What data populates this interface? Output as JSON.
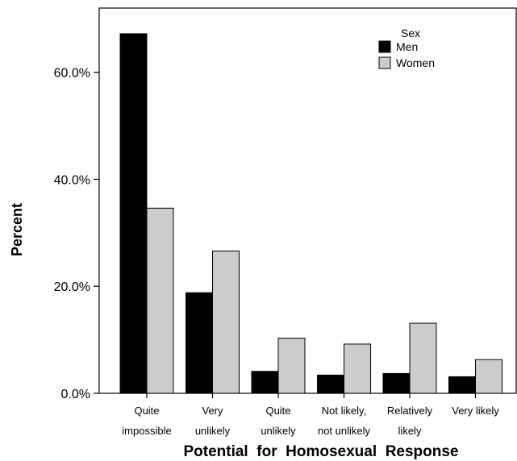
{
  "chart_data": {
    "type": "bar",
    "title": "",
    "xlabel": "Potential  for  Homosexual  Response",
    "ylabel": "Percent",
    "ylim": [
      0,
      72
    ],
    "yticks": [
      0,
      20,
      40,
      60
    ],
    "ytick_labels": [
      "0.0%",
      "20.0%",
      "40.0%",
      "60.0%"
    ],
    "categories": [
      [
        "Quite",
        "impossible"
      ],
      [
        "Very",
        "unlikely"
      ],
      [
        "Quite",
        "unlikely"
      ],
      [
        "Not likely,",
        "not unlikely"
      ],
      [
        "Relatively",
        "likely"
      ],
      [
        "Very likely"
      ]
    ],
    "series": [
      {
        "name": "Men",
        "color": "#000000",
        "values": [
          67.2,
          18.8,
          4.1,
          3.4,
          3.7,
          3.1
        ]
      },
      {
        "name": "Women",
        "color": "#cccccc",
        "values": [
          34.6,
          26.6,
          10.3,
          9.2,
          13.1,
          6.3
        ]
      }
    ],
    "legend": {
      "title": "Sex",
      "position": "top-right"
    },
    "grid": false
  }
}
